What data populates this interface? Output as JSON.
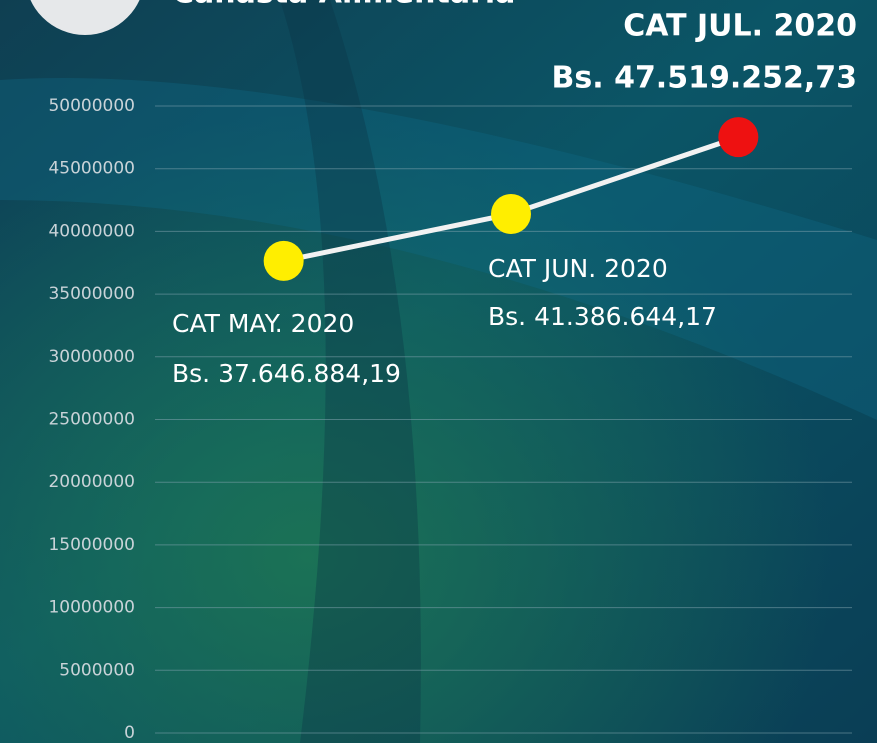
{
  "chart_data": {
    "type": "line",
    "title": "Canasta Alimentaria",
    "categories": [
      "CAT MAY. 2020",
      "CAT JUN. 2020",
      "CAT JUL. 2020"
    ],
    "values": [
      37646884.19,
      41386644.17,
      47519252.73
    ],
    "value_labels": [
      "Bs. 37.646.884,19",
      "Bs. 41.386.644,17",
      "Bs. 47.519.252,73"
    ],
    "line_color": "#f2f2f2",
    "point_colors": [
      "#ffee00",
      "#ffee00",
      "#ee1111"
    ],
    "ylim": [
      0,
      50000000
    ],
    "yticks": [
      0,
      5000000,
      10000000,
      15000000,
      20000000,
      25000000,
      30000000,
      35000000,
      40000000,
      45000000,
      50000000
    ],
    "grid": true
  }
}
